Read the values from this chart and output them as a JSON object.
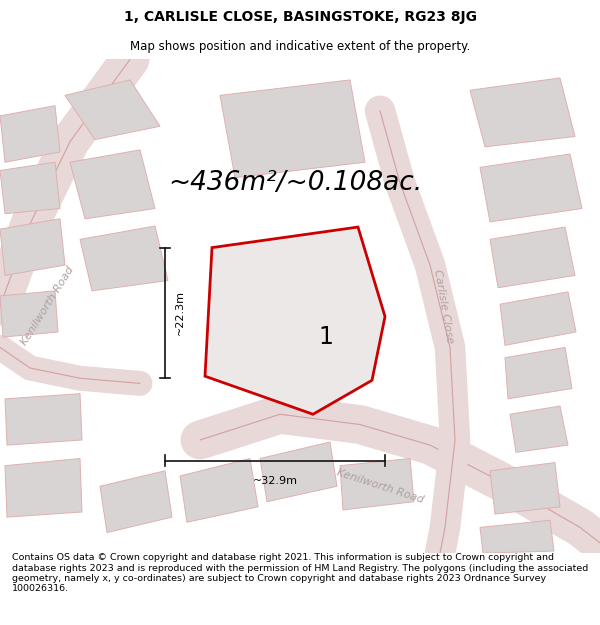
{
  "title_line1": "1, CARLISLE CLOSE, BASINGSTOKE, RG23 8JG",
  "title_line2": "Map shows position and indicative extent of the property.",
  "area_text": "~436m²/~0.108ac.",
  "plot_number": "1",
  "dim_vertical": "~22.3m",
  "dim_horizontal": "~32.9m",
  "road_label_left": "Kenilworth Road",
  "road_label_right": "Carlisle Close",
  "road_label_bottom": "Kenilworth Road",
  "footer_text": "Contains OS data © Crown copyright and database right 2021. This information is subject to Crown copyright and database rights 2023 and is reproduced with the permission of HM Land Registry. The polygons (including the associated geometry, namely x, y co-ordinates) are subject to Crown copyright and database rights 2023 Ordnance Survey 100026316.",
  "map_bg": "#f0eeee",
  "road_fill": "#e8d8d8",
  "road_edge": "#d4a0a0",
  "building_fill": "#d8d4d4",
  "building_edge": "#e0b0b0",
  "plot_fill": "#ede8e8",
  "plot_edge": "#cc0000",
  "dim_color": "#111111",
  "road_text_color": "#b0a0a0",
  "title_fontsize": 10,
  "subtitle_fontsize": 8.5,
  "area_fontsize": 19,
  "plot_num_fontsize": 17,
  "dim_fontsize": 8,
  "road_label_fontsize": 8,
  "footer_fontsize": 6.8
}
